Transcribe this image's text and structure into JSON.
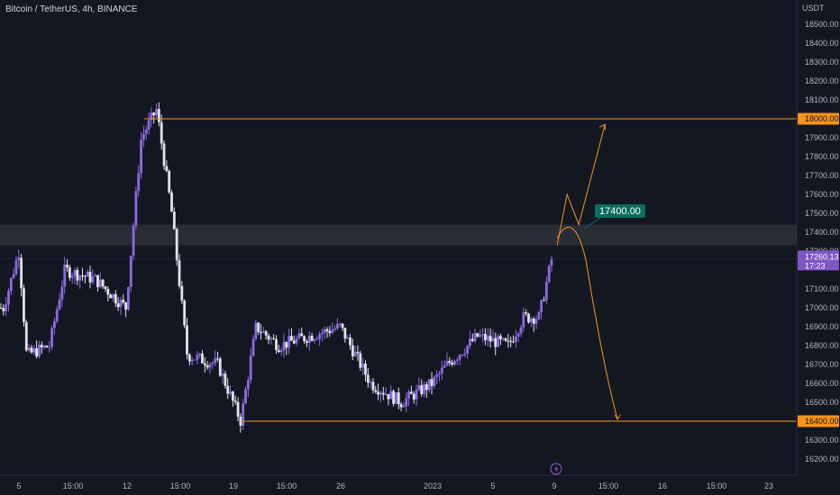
{
  "header": {
    "symbol_title": "Bitcoin / TetherUS, 4h, BINANCE"
  },
  "price_axis": {
    "unit": "USDT",
    "tick_labels": [
      "18500.00",
      "18400.00",
      "18300.00",
      "18200.00",
      "18100.00",
      "17900.00",
      "17800.00",
      "17700.00",
      "17600.00",
      "17500.00",
      "17400.00",
      "17300.00",
      "17100.00",
      "17000.00",
      "16900.00",
      "16800.00",
      "16700.00",
      "16600.00",
      "16500.00",
      "16300.00",
      "16200.00"
    ],
    "current_price_tag": "17260.13",
    "countdown": "17:23",
    "resistance_tag": "18000.00",
    "support_tag": "16400.00"
  },
  "time_axis": {
    "tick_labels": [
      "5",
      "15:00",
      "12",
      "15:00",
      "19",
      "15:00",
      "26",
      "2023",
      "5",
      "9",
      "15:00",
      "16",
      "15:00",
      "23"
    ]
  },
  "annotations": {
    "callout_label": "17400.00",
    "event_icon": "lightning-icon"
  },
  "colors": {
    "background": "#131722",
    "bull_candle": "#8e6ae0",
    "bear_candle": "#e0e3eb",
    "level_line": "#f7931a",
    "callout_bg": "#0b6e5c",
    "price_tag_bg": "#7e57c2",
    "zone_fill": "#2a2e39"
  },
  "chart_data": {
    "type": "candlestick",
    "title": "Bitcoin / TetherUS, 4h, BINANCE",
    "ylabel": "USDT",
    "ylim": [
      16150,
      18600
    ],
    "x_range": [
      "2022-12-04",
      "2023-01-24"
    ],
    "levels": [
      {
        "name": "resistance",
        "price": 18000
      },
      {
        "name": "support",
        "price": 16400
      }
    ],
    "zone": {
      "from": 17330,
      "to": 17440
    },
    "current_price": 17260.13,
    "projection_target_up": 17970,
    "projection_target_down": 16410,
    "keypoints": [
      {
        "date": "2022-12-04 00:00",
        "price": 17000
      },
      {
        "date": "2022-12-05 00:00",
        "price": 17300
      },
      {
        "date": "2022-12-05 12:00",
        "price": 16750
      },
      {
        "date": "2022-12-07 00:00",
        "price": 16800
      },
      {
        "date": "2022-12-08 00:00",
        "price": 17200
      },
      {
        "date": "2022-12-10 00:00",
        "price": 17150
      },
      {
        "date": "2022-12-12 00:00",
        "price": 17000
      },
      {
        "date": "2022-12-13 00:00",
        "price": 17900
      },
      {
        "date": "2022-12-14 00:00",
        "price": 18050
      },
      {
        "date": "2022-12-15 00:00",
        "price": 17500
      },
      {
        "date": "2022-12-16 00:00",
        "price": 16750
      },
      {
        "date": "2022-12-18 00:00",
        "price": 16700
      },
      {
        "date": "2022-12-19 12:00",
        "price": 16400
      },
      {
        "date": "2022-12-20 12:00",
        "price": 16900
      },
      {
        "date": "2022-12-22 00:00",
        "price": 16800
      },
      {
        "date": "2022-12-24 00:00",
        "price": 16850
      },
      {
        "date": "2022-12-26 00:00",
        "price": 16900
      },
      {
        "date": "2022-12-28 00:00",
        "price": 16600
      },
      {
        "date": "2022-12-30 00:00",
        "price": 16500
      },
      {
        "date": "2023-01-01 00:00",
        "price": 16600
      },
      {
        "date": "2023-01-02 00:00",
        "price": 16700
      },
      {
        "date": "2023-01-04 00:00",
        "price": 16850
      },
      {
        "date": "2023-01-06 00:00",
        "price": 16800
      },
      {
        "date": "2023-01-07 00:00",
        "price": 16950
      },
      {
        "date": "2023-01-08 00:00",
        "price": 16950
      },
      {
        "date": "2023-01-08 20:00",
        "price": 17260
      }
    ]
  }
}
